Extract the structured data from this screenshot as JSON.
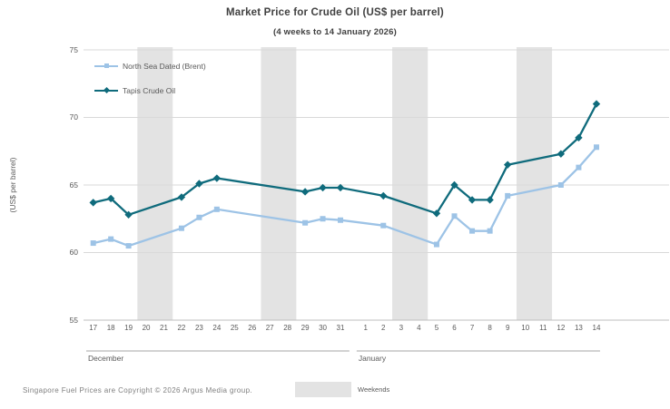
{
  "title": "Market Price for Crude Oil (US$ per barrel)",
  "subtitle": "(4 weeks to 14 January 2026)",
  "y_axis_title": "(US$ per barrel)",
  "footer": {
    "copyright": "Singapore Fuel Prices are Copyright © 2026 Argus Media group.",
    "weekend_label": "Weekends"
  },
  "colors": {
    "brent": "#9DC3E6",
    "tapis": "#0F6B7C",
    "gridline": "#D9D9D9",
    "axis_line": "#BFBFBF",
    "weekend_band": "#E3E3E3",
    "month_line": "#A6A6A6",
    "title_text": "#404040",
    "axis_text": "#595959",
    "footer_text": "#7F7F7F"
  },
  "chart_data": {
    "type": "line",
    "title": "Market Price for Crude Oil (US$ per barrel)",
    "subtitle": "(4 weeks to 14 January 2026)",
    "xlabel": "",
    "ylabel": "(US$ per barrel)",
    "ylim": [
      55,
      75
    ],
    "yticks": [
      55,
      60,
      65,
      70,
      75
    ],
    "grid": "horizontal",
    "legend_position": "top-left",
    "month_groups": [
      {
        "label": "December",
        "days": [
          17,
          18,
          19,
          20,
          21,
          22,
          23,
          24,
          25,
          26,
          27,
          28,
          29,
          30,
          31
        ]
      },
      {
        "label": "January",
        "days": [
          1,
          2,
          3,
          4,
          5,
          6,
          7,
          8,
          9,
          10,
          11,
          12,
          13,
          14
        ]
      }
    ],
    "weekend_spans": [
      {
        "month": "December",
        "days": [
          20,
          21
        ]
      },
      {
        "month": "December",
        "days": [
          27,
          28
        ]
      },
      {
        "month": "January",
        "days": [
          3,
          4
        ]
      },
      {
        "month": "January",
        "days": [
          10,
          11
        ]
      }
    ],
    "series": [
      {
        "name": "North Sea Dated (Brent)",
        "marker": "square",
        "color": "#9DC3E6",
        "points": [
          {
            "month": "December",
            "day": 17,
            "value": 60.7
          },
          {
            "month": "December",
            "day": 18,
            "value": 61.0
          },
          {
            "month": "December",
            "day": 19,
            "value": 60.5
          },
          {
            "month": "December",
            "day": 22,
            "value": 61.8
          },
          {
            "month": "December",
            "day": 23,
            "value": 62.6
          },
          {
            "month": "December",
            "day": 24,
            "value": 63.2
          },
          {
            "month": "December",
            "day": 29,
            "value": 62.2
          },
          {
            "month": "December",
            "day": 30,
            "value": 62.5
          },
          {
            "month": "December",
            "day": 31,
            "value": 62.4
          },
          {
            "month": "January",
            "day": 2,
            "value": 62.0
          },
          {
            "month": "January",
            "day": 5,
            "value": 60.6
          },
          {
            "month": "January",
            "day": 6,
            "value": 62.7
          },
          {
            "month": "January",
            "day": 7,
            "value": 61.6
          },
          {
            "month": "January",
            "day": 8,
            "value": 61.6
          },
          {
            "month": "January",
            "day": 9,
            "value": 64.2
          },
          {
            "month": "January",
            "day": 12,
            "value": 65.0
          },
          {
            "month": "January",
            "day": 13,
            "value": 66.3
          },
          {
            "month": "January",
            "day": 14,
            "value": 67.8
          }
        ]
      },
      {
        "name": "Tapis Crude Oil",
        "marker": "diamond",
        "color": "#0F6B7C",
        "points": [
          {
            "month": "December",
            "day": 17,
            "value": 63.7
          },
          {
            "month": "December",
            "day": 18,
            "value": 64.0
          },
          {
            "month": "December",
            "day": 19,
            "value": 62.8
          },
          {
            "month": "December",
            "day": 22,
            "value": 64.1
          },
          {
            "month": "December",
            "day": 23,
            "value": 65.1
          },
          {
            "month": "December",
            "day": 24,
            "value": 65.5
          },
          {
            "month": "December",
            "day": 29,
            "value": 64.5
          },
          {
            "month": "December",
            "day": 30,
            "value": 64.8
          },
          {
            "month": "December",
            "day": 31,
            "value": 64.8
          },
          {
            "month": "January",
            "day": 2,
            "value": 64.2
          },
          {
            "month": "January",
            "day": 5,
            "value": 62.9
          },
          {
            "month": "January",
            "day": 6,
            "value": 65.0
          },
          {
            "month": "January",
            "day": 7,
            "value": 63.9
          },
          {
            "month": "January",
            "day": 8,
            "value": 63.9
          },
          {
            "month": "January",
            "day": 9,
            "value": 66.5
          },
          {
            "month": "January",
            "day": 12,
            "value": 67.3
          },
          {
            "month": "January",
            "day": 13,
            "value": 68.5
          },
          {
            "month": "January",
            "day": 14,
            "value": 71.0
          }
        ]
      }
    ]
  }
}
